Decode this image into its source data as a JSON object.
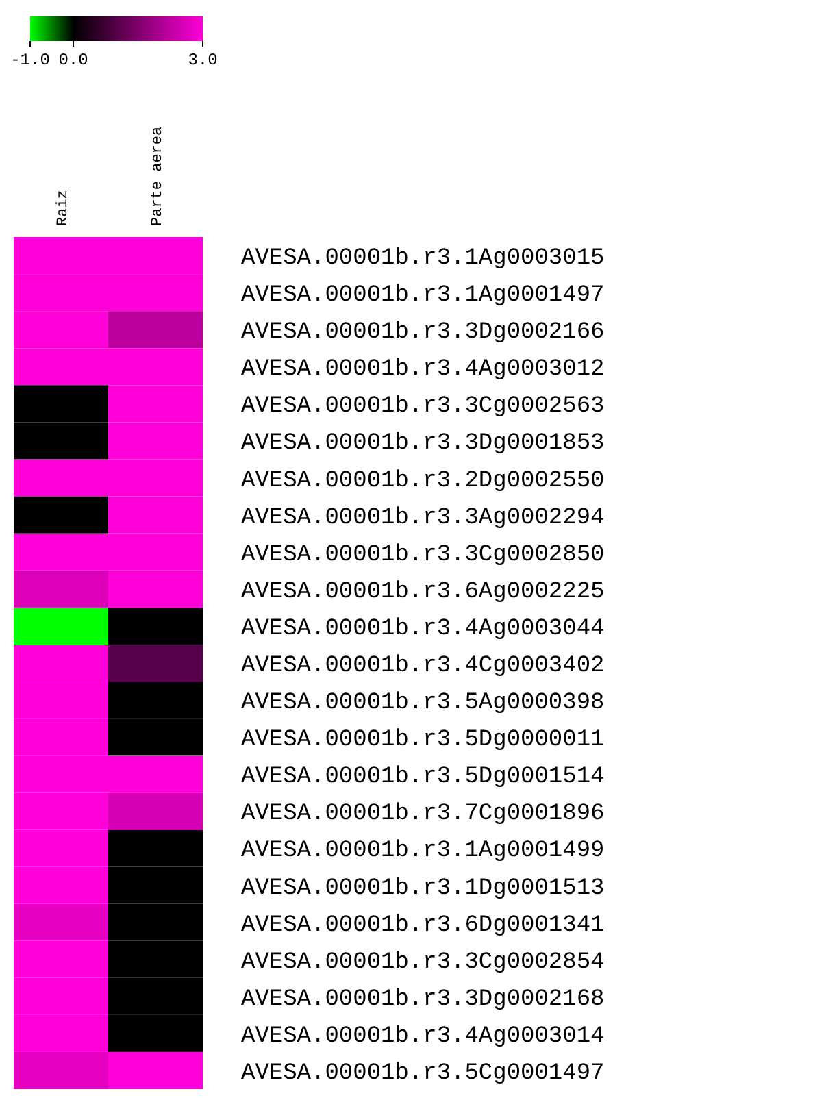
{
  "chart_data": {
    "type": "heatmap",
    "categories": [
      "Raiz",
      "Parte aerea"
    ],
    "y_categories": [
      "AVESA.00001b.r3.1Ag0003015",
      "AVESA.00001b.r3.1Ag0001497",
      "AVESA.00001b.r3.3Dg0002166",
      "AVESA.00001b.r3.4Ag0003012",
      "AVESA.00001b.r3.3Cg0002563",
      "AVESA.00001b.r3.3Dg0001853",
      "AVESA.00001b.r3.2Dg0002550",
      "AVESA.00001b.r3.3Ag0002294",
      "AVESA.00001b.r3.3Cg0002850",
      "AVESA.00001b.r3.6Ag0002225",
      "AVESA.00001b.r3.4Ag0003044",
      "AVESA.00001b.r3.4Cg0003402",
      "AVESA.00001b.r3.5Ag0000398",
      "AVESA.00001b.r3.5Dg0000011",
      "AVESA.00001b.r3.5Dg0001514",
      "AVESA.00001b.r3.7Cg0001896",
      "AVESA.00001b.r3.1Ag0001499",
      "AVESA.00001b.r3.1Dg0001513",
      "AVESA.00001b.r3.6Dg0001341",
      "AVESA.00001b.r3.3Cg0002854",
      "AVESA.00001b.r3.3Dg0002168",
      "AVESA.00001b.r3.4Ag0003014",
      "AVESA.00001b.r3.5Cg0001497"
    ],
    "cells": [
      [
        3,
        3
      ],
      [
        3,
        3
      ],
      [
        3,
        2.2
      ],
      [
        3,
        3
      ],
      [
        0,
        3
      ],
      [
        0,
        3
      ],
      [
        3,
        3
      ],
      [
        0,
        3
      ],
      [
        3,
        3
      ],
      [
        2.6,
        3
      ],
      [
        -1,
        0
      ],
      [
        3,
        1
      ],
      [
        3,
        0
      ],
      [
        3,
        0
      ],
      [
        3,
        3
      ],
      [
        3,
        2.5
      ],
      [
        3,
        0
      ],
      [
        3,
        0
      ],
      [
        2.7,
        0
      ],
      [
        3,
        0
      ],
      [
        3,
        0
      ],
      [
        3,
        0
      ],
      [
        2.7,
        3
      ]
    ],
    "clim": [
      -1,
      3
    ],
    "cticks": [
      {
        "value": -1,
        "label": "-1.0"
      },
      {
        "value": 0,
        "label": "0.0"
      },
      {
        "value": 3,
        "label": "3.0"
      }
    ]
  }
}
